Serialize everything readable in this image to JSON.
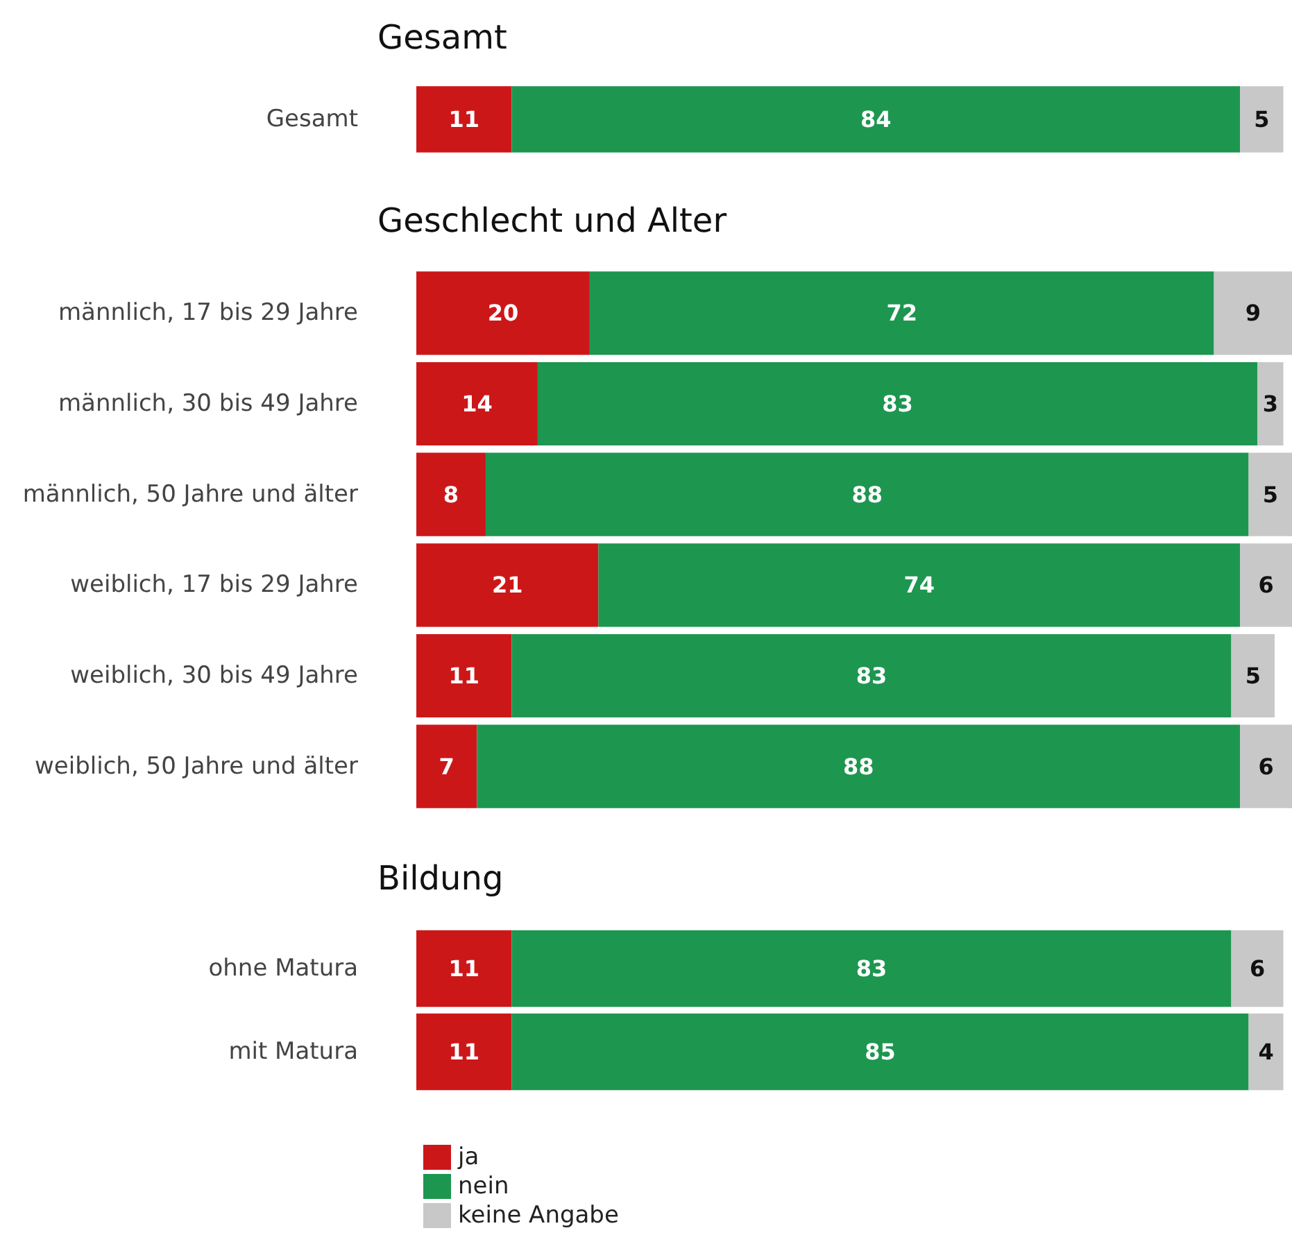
{
  "chart_data": [
    {
      "type": "bar",
      "orientation": "horizontal",
      "stacked": true,
      "title": "Gesamt",
      "categories": [
        "Gesamt"
      ],
      "series": [
        {
          "color": "#cc1719",
          "values": [
            11
          ]
        },
        {
          "color": "#1d9650",
          "values": [
            84
          ]
        },
        {
          "color": "#c8c8c8",
          "values": [
            5
          ]
        }
      ],
      "data_labels": true,
      "legend": false,
      "grid": false,
      "tick_labels": "y"
    },
    {
      "type": "bar",
      "orientation": "horizontal",
      "stacked": true,
      "title": "Geschlecht und Alter",
      "categories": [
        "männlich, 17 bis 29 Jahre",
        "männlich, 30 bis 49 Jahre",
        "männlich, 50 Jahre und älter",
        "weiblich, 17 bis 29 Jahre",
        "weiblich, 30 bis 49 Jahre",
        "weiblich, 50 Jahre und älter"
      ],
      "series": [
        {
          "color": "#cc1719",
          "values": [
            20,
            14,
            8,
            21,
            11,
            7
          ]
        },
        {
          "color": "#1d9650",
          "values": [
            72,
            83,
            88,
            74,
            83,
            88
          ]
        },
        {
          "color": "#c8c8c8",
          "values": [
            9,
            3,
            5,
            6,
            5,
            6
          ]
        }
      ],
      "data_labels": true,
      "legend": false,
      "grid": false,
      "tick_labels": "y"
    },
    {
      "type": "bar",
      "orientation": "horizontal",
      "stacked": true,
      "title": "Bildung",
      "categories": [
        "ohne Matura",
        "mit Matura"
      ],
      "series": [
        {
          "name": "ja",
          "color": "#cc1719",
          "values": [
            11,
            11
          ]
        },
        {
          "name": "nein",
          "color": "#1d9650",
          "values": [
            83,
            85
          ]
        },
        {
          "name": "keine Angabe",
          "color": "#c8c8c8",
          "values": [
            6,
            4
          ]
        }
      ],
      "data_labels": true,
      "legend": "bottom left",
      "grid": false,
      "tick_labels": "y"
    }
  ]
}
